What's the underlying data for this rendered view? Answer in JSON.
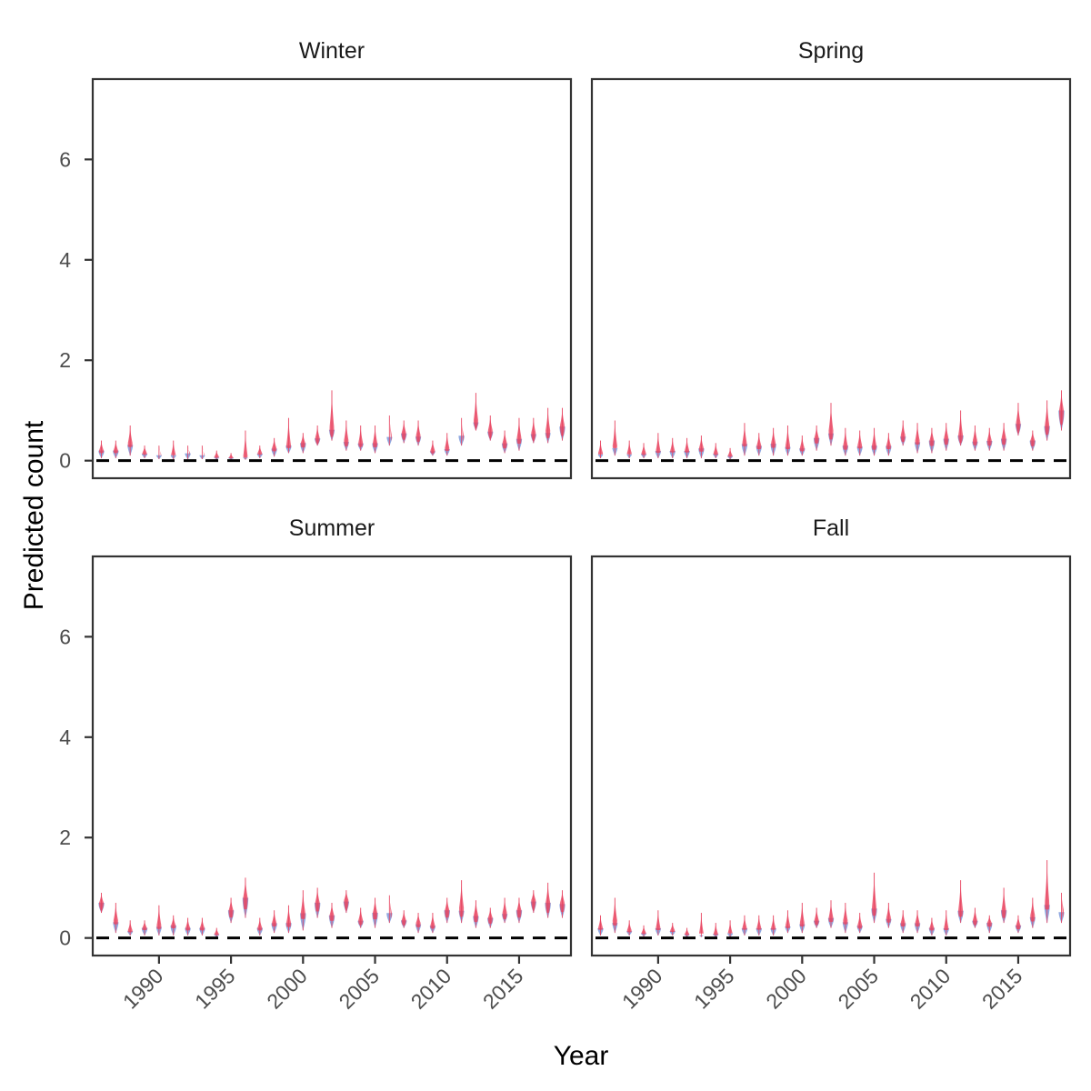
{
  "chart_data": {
    "type": "violin",
    "xlabel": "Year",
    "ylabel": "Predicted count",
    "ylim": [
      -0.35,
      7.6
    ],
    "xlim": [
      1985.4,
      2018.6
    ],
    "x_ticks": [
      1990,
      1995,
      2000,
      2005,
      2010,
      2015
    ],
    "x_tick_labels": [
      "1990",
      "1995",
      "2000",
      "2005",
      "2010",
      "2015"
    ],
    "y_ticks": [
      0,
      2,
      4,
      6
    ],
    "y_tick_labels": [
      "0",
      "2",
      "4",
      "6"
    ],
    "reference_line": {
      "y": 0,
      "style": "dashed",
      "color": "#000000"
    },
    "grid": false,
    "colors": {
      "lower_half": "#6b8bd6",
      "upper_half": "#e8435f"
    },
    "panels": [
      {
        "title": "Winter",
        "years": [
          1986,
          1987,
          1988,
          1989,
          1990,
          1991,
          1992,
          1993,
          1994,
          1995,
          1996,
          1997,
          1998,
          1999,
          2000,
          2001,
          2002,
          2003,
          2004,
          2005,
          2006,
          2007,
          2008,
          2009,
          2010,
          2011,
          2012,
          2013,
          2014,
          2015,
          2016,
          2017,
          2018
        ],
        "low": [
          0.05,
          0.05,
          0.1,
          0.05,
          0.03,
          0.03,
          0.03,
          0.03,
          0.02,
          0.02,
          0.02,
          0.05,
          0.08,
          0.15,
          0.15,
          0.3,
          0.4,
          0.2,
          0.2,
          0.15,
          0.3,
          0.35,
          0.3,
          0.1,
          0.1,
          0.3,
          0.6,
          0.4,
          0.15,
          0.2,
          0.35,
          0.35,
          0.4
        ],
        "mode": [
          0.2,
          0.2,
          0.35,
          0.15,
          0.12,
          0.12,
          0.15,
          0.12,
          0.08,
          0.06,
          0.08,
          0.15,
          0.25,
          0.3,
          0.35,
          0.45,
          0.65,
          0.4,
          0.35,
          0.35,
          0.5,
          0.55,
          0.5,
          0.2,
          0.25,
          0.5,
          0.8,
          0.6,
          0.35,
          0.45,
          0.55,
          0.6,
          0.7
        ],
        "high": [
          0.4,
          0.4,
          0.7,
          0.3,
          0.3,
          0.4,
          0.3,
          0.3,
          0.2,
          0.15,
          0.6,
          0.3,
          0.45,
          0.85,
          0.55,
          0.7,
          1.4,
          0.8,
          0.7,
          0.7,
          0.9,
          0.8,
          0.8,
          0.4,
          0.55,
          0.85,
          1.35,
          0.9,
          0.6,
          0.85,
          0.85,
          1.05,
          1.05
        ]
      },
      {
        "title": "Spring",
        "years": [
          1986,
          1987,
          1988,
          1989,
          1990,
          1991,
          1992,
          1993,
          1994,
          1995,
          1996,
          1997,
          1998,
          1999,
          2000,
          2001,
          2002,
          2003,
          2004,
          2005,
          2006,
          2007,
          2008,
          2009,
          2010,
          2011,
          2012,
          2013,
          2014,
          2015,
          2016,
          2017,
          2018
        ],
        "low": [
          0.05,
          0.1,
          0.05,
          0.05,
          0.05,
          0.05,
          0.05,
          0.05,
          0.05,
          0.03,
          0.1,
          0.1,
          0.1,
          0.1,
          0.1,
          0.2,
          0.3,
          0.1,
          0.1,
          0.1,
          0.1,
          0.3,
          0.15,
          0.15,
          0.2,
          0.3,
          0.2,
          0.2,
          0.2,
          0.5,
          0.2,
          0.4,
          0.6
        ],
        "mode": [
          0.15,
          0.3,
          0.15,
          0.15,
          0.2,
          0.2,
          0.2,
          0.25,
          0.15,
          0.1,
          0.35,
          0.3,
          0.35,
          0.3,
          0.25,
          0.45,
          0.6,
          0.3,
          0.3,
          0.3,
          0.3,
          0.5,
          0.4,
          0.4,
          0.45,
          0.5,
          0.4,
          0.4,
          0.45,
          0.75,
          0.4,
          0.7,
          1.0
        ],
        "high": [
          0.4,
          0.8,
          0.4,
          0.35,
          0.55,
          0.45,
          0.45,
          0.5,
          0.35,
          0.25,
          0.75,
          0.55,
          0.65,
          0.7,
          0.5,
          0.7,
          1.15,
          0.65,
          0.6,
          0.65,
          0.55,
          0.8,
          0.75,
          0.65,
          0.75,
          1.0,
          0.7,
          0.65,
          0.75,
          1.15,
          0.6,
          1.2,
          1.4
        ]
      },
      {
        "title": "Summer",
        "years": [
          1986,
          1987,
          1988,
          1989,
          1990,
          1991,
          1992,
          1993,
          1994,
          1995,
          1996,
          1997,
          1998,
          1999,
          2000,
          2001,
          2002,
          2003,
          2004,
          2005,
          2006,
          2007,
          2008,
          2009,
          2010,
          2011,
          2012,
          2013,
          2014,
          2015,
          2016,
          2017,
          2018
        ],
        "low": [
          0.5,
          0.1,
          0.05,
          0.05,
          0.05,
          0.05,
          0.05,
          0.05,
          0.02,
          0.3,
          0.4,
          0.05,
          0.1,
          0.1,
          0.15,
          0.4,
          0.2,
          0.5,
          0.2,
          0.2,
          0.3,
          0.2,
          0.1,
          0.1,
          0.3,
          0.3,
          0.2,
          0.2,
          0.3,
          0.3,
          0.5,
          0.4,
          0.4
        ],
        "mode": [
          0.7,
          0.35,
          0.15,
          0.2,
          0.25,
          0.25,
          0.2,
          0.2,
          0.08,
          0.55,
          0.8,
          0.2,
          0.3,
          0.3,
          0.5,
          0.7,
          0.45,
          0.75,
          0.35,
          0.5,
          0.5,
          0.35,
          0.3,
          0.25,
          0.55,
          0.6,
          0.45,
          0.4,
          0.5,
          0.55,
          0.75,
          0.7,
          0.7
        ],
        "high": [
          0.9,
          0.7,
          0.35,
          0.35,
          0.65,
          0.45,
          0.4,
          0.4,
          0.2,
          0.8,
          1.2,
          0.4,
          0.55,
          0.65,
          0.95,
          1.0,
          0.7,
          0.95,
          0.6,
          0.8,
          0.85,
          0.55,
          0.5,
          0.5,
          0.8,
          1.15,
          0.75,
          0.6,
          0.8,
          0.8,
          0.95,
          1.1,
          0.95
        ]
      },
      {
        "title": "Fall",
        "years": [
          1986,
          1987,
          1988,
          1989,
          1990,
          1991,
          1992,
          1993,
          1994,
          1995,
          1996,
          1997,
          1998,
          1999,
          2000,
          2001,
          2002,
          2003,
          2004,
          2005,
          2006,
          2007,
          2008,
          2009,
          2010,
          2011,
          2012,
          2013,
          2014,
          2015,
          2016,
          2017,
          2018
        ],
        "low": [
          0.05,
          0.1,
          0.05,
          0.03,
          0.05,
          0.05,
          0.02,
          0.02,
          0.02,
          0.02,
          0.05,
          0.05,
          0.05,
          0.1,
          0.1,
          0.2,
          0.2,
          0.1,
          0.1,
          0.3,
          0.2,
          0.1,
          0.1,
          0.05,
          0.05,
          0.3,
          0.2,
          0.1,
          0.3,
          0.1,
          0.2,
          0.3,
          0.3
        ],
        "mode": [
          0.2,
          0.35,
          0.15,
          0.1,
          0.2,
          0.15,
          0.08,
          0.08,
          0.08,
          0.1,
          0.2,
          0.2,
          0.2,
          0.25,
          0.3,
          0.35,
          0.4,
          0.35,
          0.25,
          0.6,
          0.4,
          0.3,
          0.3,
          0.2,
          0.2,
          0.55,
          0.35,
          0.3,
          0.55,
          0.25,
          0.45,
          0.7,
          0.55
        ],
        "high": [
          0.45,
          0.8,
          0.35,
          0.25,
          0.55,
          0.3,
          0.2,
          0.5,
          0.3,
          0.35,
          0.45,
          0.45,
          0.45,
          0.55,
          0.7,
          0.6,
          0.75,
          0.7,
          0.5,
          1.3,
          0.7,
          0.55,
          0.55,
          0.4,
          0.55,
          1.15,
          0.6,
          0.45,
          1.0,
          0.45,
          0.8,
          1.55,
          0.9
        ]
      }
    ]
  }
}
